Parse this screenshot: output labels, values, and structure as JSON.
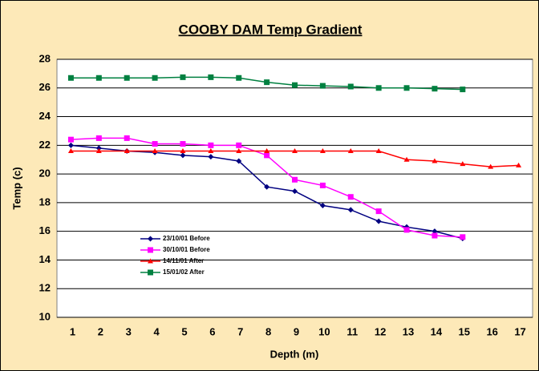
{
  "chart_data": {
    "type": "line",
    "title": "COOBY DAM Temp Gradient",
    "x_label": "Depth (m)",
    "y_label": "Temp (c)",
    "categories": [
      "1",
      "2",
      "3",
      "4",
      "5",
      "6",
      "7",
      "8",
      "9",
      "10",
      "11",
      "12",
      "13",
      "14",
      "15",
      "16",
      "17"
    ],
    "ylim": [
      10,
      28
    ],
    "yticks": [
      10,
      12,
      14,
      16,
      18,
      20,
      22,
      24,
      26,
      28
    ],
    "grid": true,
    "series": [
      {
        "name": "23/10/01 Before",
        "color": "#000080",
        "marker": "diamond",
        "values": [
          22.0,
          21.8,
          21.6,
          21.5,
          21.3,
          21.2,
          20.9,
          19.1,
          18.8,
          17.8,
          17.5,
          16.7,
          16.3,
          16.0,
          15.5,
          null,
          null
        ]
      },
      {
        "name": "30/10/01 Before",
        "color": "#ff00ff",
        "marker": "square",
        "values": [
          22.4,
          22.5,
          22.5,
          22.1,
          22.1,
          22.0,
          22.0,
          21.3,
          19.6,
          19.2,
          18.4,
          17.4,
          16.1,
          15.7,
          15.6,
          null,
          null
        ]
      },
      {
        "name": "14/11/01 After",
        "color": "#ff0000",
        "marker": "triangle",
        "values": [
          21.6,
          21.6,
          21.6,
          21.6,
          21.6,
          21.6,
          21.6,
          21.6,
          21.6,
          21.6,
          21.6,
          21.6,
          21.0,
          20.9,
          20.7,
          20.5,
          20.6
        ]
      },
      {
        "name": "15/01/02 After",
        "color": "#008040",
        "marker": "square",
        "values": [
          26.7,
          26.7,
          26.7,
          26.7,
          26.75,
          26.75,
          26.7,
          26.4,
          26.2,
          26.15,
          26.1,
          26.0,
          26.0,
          25.95,
          25.9,
          null,
          null
        ]
      }
    ]
  }
}
